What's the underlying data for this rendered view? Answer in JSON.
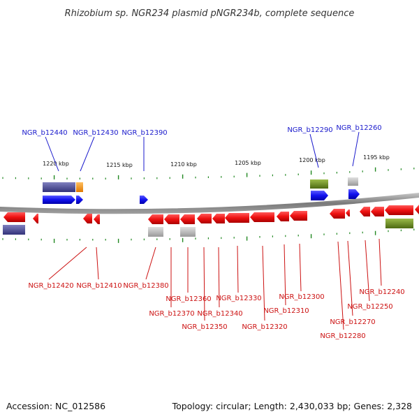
{
  "title": "Rhizobium sp. NGR234 plasmid pNGR234b, complete sequence",
  "footer": {
    "accession": "Accession: NC_012586",
    "summary": "Topology: circular; Length: 2,430,033 bp; Genes: 2,328"
  },
  "colors": {
    "forward_label": "#1a1acc",
    "reverse_label": "#cc1111",
    "cds_forward": "#1111ee",
    "cds_reverse": "#ee1111",
    "backbone": "#888888",
    "tick": "#228822",
    "gray_feature": "#b0b0b0",
    "olive_feature": "#6b8e23",
    "purple_feature": "#4b4b96",
    "orange_feature": "#ff9900"
  },
  "kbp_ticks": [
    {
      "label": "1220 kbp"
    },
    {
      "label": "1215 kbp"
    },
    {
      "label": "1210 kbp"
    },
    {
      "label": "1205 kbp"
    },
    {
      "label": "1200 kbp"
    },
    {
      "label": "1195 kbp"
    }
  ],
  "top_genes": [
    {
      "label": "NGR_b12440"
    },
    {
      "label": "NGR_b12430"
    },
    {
      "label": "NGR_b12390"
    },
    {
      "label": "NGR_b12290"
    },
    {
      "label": "NGR_b12260"
    }
  ],
  "bottom_genes": [
    {
      "label": "NGR_b12420"
    },
    {
      "label": "NGR_b12410"
    },
    {
      "label": "NGR_b12380"
    },
    {
      "label": "NGR_b12370"
    },
    {
      "label": "NGR_b12360"
    },
    {
      "label": "NGR_b12350"
    },
    {
      "label": "NGR_b12340"
    },
    {
      "label": "NGR_b12330"
    },
    {
      "label": "NGR_b12320"
    },
    {
      "label": "NGR_b12310"
    },
    {
      "label": "NGR_b12300"
    },
    {
      "label": "NGR_b12280"
    },
    {
      "label": "NGR_b12270"
    },
    {
      "label": "NGR_b12250"
    },
    {
      "label": "NGR_b12240"
    }
  ]
}
